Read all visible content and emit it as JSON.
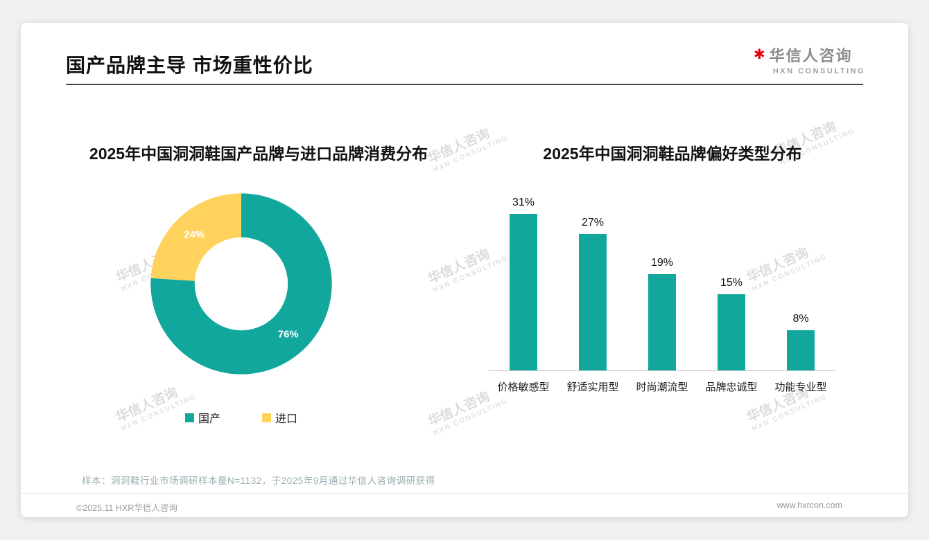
{
  "page": {
    "title": "国产品牌主导 市场重性价比",
    "logo": {
      "name": "华信人咨询",
      "subtitle": "HXN CONSULTING",
      "mark": "✱"
    },
    "watermark": {
      "line1": "华信人咨询",
      "line2": "HXN CONSULTING"
    },
    "note": "样本：洞洞鞋行业市场调研样本量N=1132，于2025年9月通过华信人咨询调研获得",
    "footer": {
      "left": "©2025.11 HXR华信人咨询",
      "right": "www.hxrcon.com"
    }
  },
  "colors": {
    "teal": "#12a79c",
    "yellow": "#ffd25e",
    "brand_red": "#e60012"
  },
  "chart_data": [
    {
      "type": "pie",
      "donut": true,
      "title": "2025年中国洞洞鞋国产品牌与进口品牌消费分布",
      "labels": [
        "国产",
        "进口"
      ],
      "values": [
        76,
        24
      ],
      "value_labels": [
        "76%",
        "24%"
      ],
      "colors": [
        "#12a79c",
        "#ffd25e"
      ],
      "legend_position": "bottom"
    },
    {
      "type": "bar",
      "title": "2025年中国洞洞鞋品牌偏好类型分布",
      "categories": [
        "价格敏感型",
        "舒适实用型",
        "时尚潮流型",
        "品牌忠诚型",
        "功能专业型"
      ],
      "values": [
        31,
        27,
        19,
        15,
        8
      ],
      "value_labels": [
        "31%",
        "27%",
        "19%",
        "15%",
        "8%"
      ],
      "unit": "%",
      "bar_color": "#12a79c",
      "ylim": [
        0,
        35
      ],
      "grid": false
    }
  ]
}
